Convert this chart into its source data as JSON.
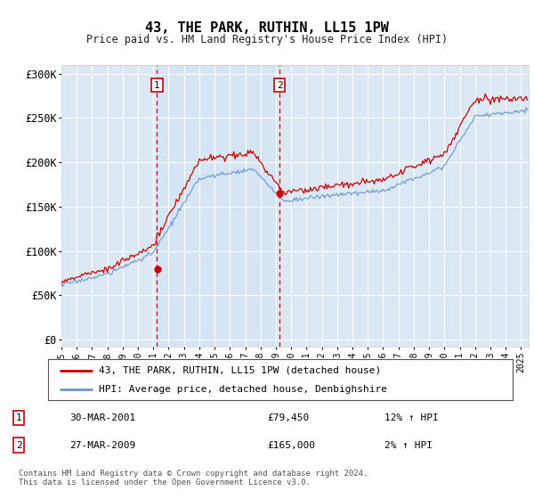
{
  "title": "43, THE PARK, RUTHIN, LL15 1PW",
  "subtitle": "Price paid vs. HM Land Registry's House Price Index (HPI)",
  "ylabel_ticks": [
    "£0",
    "£50K",
    "£100K",
    "£150K",
    "£200K",
    "£250K",
    "£300K"
  ],
  "ytick_values": [
    0,
    50000,
    100000,
    150000,
    200000,
    250000,
    300000
  ],
  "ylim": [
    -8000,
    310000
  ],
  "xlim_start": 1995.0,
  "xlim_end": 2025.5,
  "background_color": "#ffffff",
  "plot_bg_color": "#dce9f5",
  "grid_color": "#ffffff",
  "red_line_color": "#cc0000",
  "blue_line_color": "#6699cc",
  "sale1_x": 2001.24,
  "sale1_y": 79450,
  "sale2_x": 2009.24,
  "sale2_y": 165000,
  "sale1_label": "1",
  "sale1_date": "30-MAR-2001",
  "sale1_price": "£79,450",
  "sale1_hpi": "12% ↑ HPI",
  "sale2_label": "2",
  "sale2_date": "27-MAR-2009",
  "sale2_price": "£165,000",
  "sale2_hpi": "2% ↑ HPI",
  "legend_line1": "43, THE PARK, RUTHIN, LL15 1PW (detached house)",
  "legend_line2": "HPI: Average price, detached house, Denbighshire",
  "footer1": "Contains HM Land Registry data © Crown copyright and database right 2024.",
  "footer2": "This data is licensed under the Open Government Licence v3.0.",
  "xtick_years": [
    1995,
    1996,
    1997,
    1998,
    1999,
    2000,
    2001,
    2002,
    2003,
    2004,
    2005,
    2006,
    2007,
    2008,
    2009,
    2010,
    2011,
    2012,
    2013,
    2014,
    2015,
    2016,
    2017,
    2018,
    2019,
    2020,
    2021,
    2022,
    2023,
    2024,
    2025
  ]
}
